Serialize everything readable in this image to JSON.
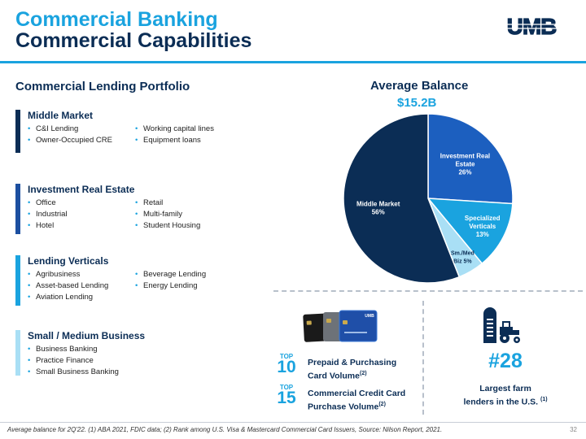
{
  "header": {
    "title_line1": "Commercial Banking",
    "title_line2": "Commercial Capabilities",
    "logo_text": "UMB",
    "colors": {
      "accent": "#1aa3df",
      "navy": "#0b2d55"
    }
  },
  "portfolio": {
    "heading": "Commercial Lending Portfolio",
    "segments": [
      {
        "name": "Middle Market",
        "bar_color": "#0b2d55",
        "col1": [
          "C&I Lending",
          "Owner-Occupied CRE"
        ],
        "col2": [
          "Working capital lines",
          "Equipment loans"
        ]
      },
      {
        "name": "Investment Real Estate",
        "bar_color": "#1c4fa0",
        "col1": [
          "Office",
          "Industrial",
          "Hotel"
        ],
        "col2": [
          "Retail",
          "Multi-family",
          "Student Housing"
        ]
      },
      {
        "name": "Lending Verticals",
        "bar_color": "#1aa3df",
        "col1": [
          "Agribusiness",
          "Asset-based Lending",
          "Aviation Lending"
        ],
        "col2": [
          "Beverage Lending",
          "Energy Lending"
        ]
      },
      {
        "name": "Small / Medium Business",
        "bar_color": "#a9dff5",
        "col1": [
          "Business Banking",
          "Practice Finance",
          "Small Business Banking"
        ],
        "col2": []
      }
    ]
  },
  "chart_data": {
    "type": "pie",
    "title": "Average Balance",
    "subtitle": "$15.2B",
    "slices": [
      {
        "label_lines": [
          "Investment Real",
          "Estate",
          "26%"
        ],
        "value": 26,
        "color": "#1c5fbf"
      },
      {
        "label_lines": [
          "Specialized",
          "Verticals",
          "13%"
        ],
        "value": 13,
        "color": "#1aa3df"
      },
      {
        "label_lines": [
          "Sm./Med",
          "Biz 5%"
        ],
        "value": 5,
        "color": "#a9dff5"
      },
      {
        "label_lines": [
          "Middle Market",
          "56%"
        ],
        "value": 56,
        "color": "#0b2d55"
      }
    ]
  },
  "highlights": {
    "prepaid": {
      "rank_top": "TOP",
      "rank_num": "10",
      "label_line1": "Prepaid & Purchasing",
      "label_line2": "Card Volume",
      "note": "(2)"
    },
    "credit": {
      "rank_top": "TOP",
      "rank_num": "15",
      "label_line1": "Commercial Credit Card",
      "label_line2": "Purchase Volume",
      "note": "(2)"
    },
    "farm": {
      "rank": "#28",
      "label_line1": "Largest farm",
      "label_line2": "lenders in the U.S.",
      "note": "(1)"
    }
  },
  "footer": {
    "footnote": "Average balance for 2Q'22. (1) ABA 2021, FDIC data; (2) Rank among U.S. Visa & Mastercard Commercial Card Issuers, Source: Nilson Report, 2021.",
    "page_number": "32"
  }
}
